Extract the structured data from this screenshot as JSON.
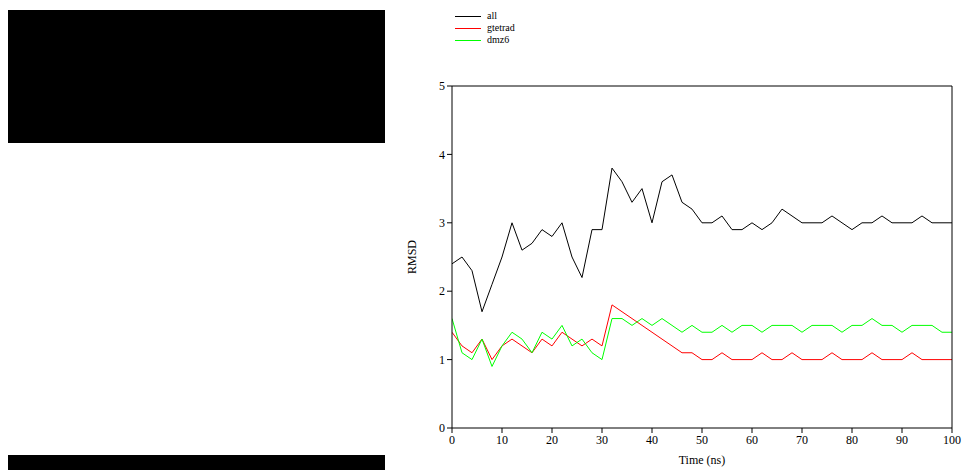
{
  "chart_data": {
    "type": "line",
    "x_label": "Time (ns)",
    "y_label": "RMSD",
    "xlim": [
      0,
      100
    ],
    "xticks": [
      0,
      10,
      20,
      30,
      40,
      50,
      60,
      70,
      80,
      90,
      100
    ],
    "ylim": [
      0,
      5
    ],
    "yticks": [
      0,
      1,
      2,
      3,
      4,
      5
    ],
    "grid": false,
    "legend": "upper left",
    "x": [
      0,
      2,
      4,
      6,
      8,
      10,
      12,
      14,
      16,
      18,
      20,
      22,
      24,
      26,
      28,
      30,
      32,
      34,
      36,
      38,
      40,
      42,
      44,
      46,
      48,
      50,
      52,
      54,
      56,
      58,
      60,
      62,
      64,
      66,
      68,
      70,
      72,
      74,
      76,
      78,
      80,
      82,
      84,
      86,
      88,
      90,
      92,
      94,
      96,
      98,
      100
    ],
    "series": [
      {
        "name": "all",
        "color": "#000000",
        "values": [
          2.4,
          2.5,
          2.3,
          1.7,
          2.1,
          2.5,
          3.0,
          2.6,
          2.7,
          2.9,
          2.8,
          3.0,
          2.5,
          2.2,
          2.9,
          2.9,
          3.8,
          3.6,
          3.3,
          3.5,
          3.0,
          3.6,
          3.7,
          3.3,
          3.2,
          3.0,
          3.0,
          3.1,
          2.9,
          2.9,
          3.0,
          2.9,
          3.0,
          3.2,
          3.1,
          3.0,
          3.0,
          3.0,
          3.1,
          3.0,
          2.9,
          3.0,
          3.0,
          3.1,
          3.0,
          3.0,
          3.0,
          3.1,
          3.0,
          3.0,
          3.0
        ]
      },
      {
        "name": "gtetrad",
        "color": "#ff0000",
        "values": [
          1.4,
          1.2,
          1.1,
          1.3,
          1.0,
          1.2,
          1.3,
          1.2,
          1.1,
          1.3,
          1.2,
          1.4,
          1.3,
          1.2,
          1.3,
          1.2,
          1.8,
          1.7,
          1.6,
          1.5,
          1.4,
          1.3,
          1.2,
          1.1,
          1.1,
          1.0,
          1.0,
          1.1,
          1.0,
          1.0,
          1.0,
          1.1,
          1.0,
          1.0,
          1.1,
          1.0,
          1.0,
          1.0,
          1.1,
          1.0,
          1.0,
          1.0,
          1.1,
          1.0,
          1.0,
          1.0,
          1.1,
          1.0,
          1.0,
          1.0,
          1.0
        ]
      },
      {
        "name": "dmz6",
        "color": "#00ff00",
        "values": [
          1.6,
          1.1,
          1.0,
          1.3,
          0.9,
          1.2,
          1.4,
          1.3,
          1.1,
          1.4,
          1.3,
          1.5,
          1.2,
          1.3,
          1.1,
          1.0,
          1.6,
          1.6,
          1.5,
          1.6,
          1.5,
          1.6,
          1.5,
          1.4,
          1.5,
          1.4,
          1.4,
          1.5,
          1.4,
          1.5,
          1.5,
          1.4,
          1.5,
          1.5,
          1.5,
          1.4,
          1.5,
          1.5,
          1.5,
          1.4,
          1.5,
          1.5,
          1.6,
          1.5,
          1.5,
          1.4,
          1.5,
          1.5,
          1.5,
          1.4,
          1.4
        ]
      }
    ]
  }
}
